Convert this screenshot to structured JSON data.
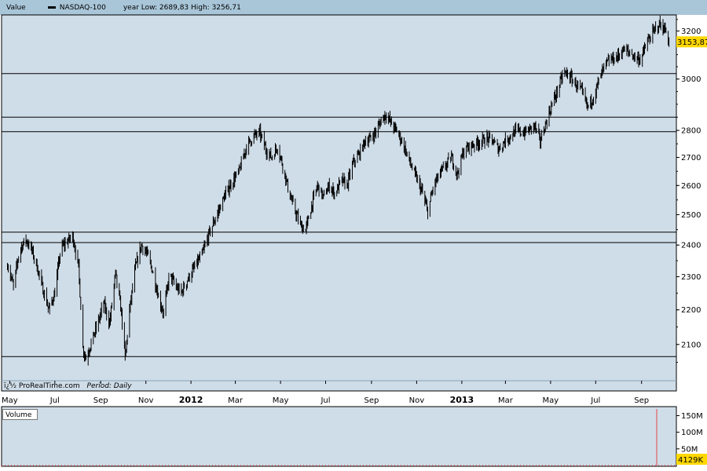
{
  "header": {
    "value_label": "Value",
    "series_name": "NASDAQ-100",
    "range_text": "year Low: 2689,83 High: 3256,71"
  },
  "credit": {
    "source": "ï¿½ ProRealTime.com",
    "period": "Period: Daily"
  },
  "volume_panel": {
    "label": "Volume",
    "last_value": "4129K",
    "spike_color": "#e04848"
  },
  "colors": {
    "background": "#cfdde8",
    "frame": "#000000",
    "last_price_badge": "#ffd800",
    "header_bg": "#a9c6d9"
  },
  "chart_data": [
    {
      "type": "line",
      "style": "daily OHLC bars",
      "series": [
        {
          "name": "NASDAQ-100",
          "points": [
            [
              "2011-04-28",
              2340
            ],
            [
              "2011-05-06",
              2270
            ],
            [
              "2011-05-14",
              2380
            ],
            [
              "2011-05-22",
              2420
            ],
            [
              "2011-05-30",
              2390
            ],
            [
              "2011-06-07",
              2330
            ],
            [
              "2011-06-15",
              2260
            ],
            [
              "2011-06-23",
              2200
            ],
            [
              "2011-07-01",
              2250
            ],
            [
              "2011-07-09",
              2390
            ],
            [
              "2011-07-17",
              2410
            ],
            [
              "2011-07-25",
              2430
            ],
            [
              "2011-08-02",
              2330
            ],
            [
              "2011-08-08",
              2090
            ],
            [
              "2011-08-12",
              2060
            ],
            [
              "2011-08-20",
              2110
            ],
            [
              "2011-08-28",
              2160
            ],
            [
              "2011-09-05",
              2220
            ],
            [
              "2011-09-13",
              2160
            ],
            [
              "2011-09-21",
              2310
            ],
            [
              "2011-09-29",
              2190
            ],
            [
              "2011-10-04",
              2060
            ],
            [
              "2011-10-10",
              2200
            ],
            [
              "2011-10-18",
              2330
            ],
            [
              "2011-10-26",
              2400
            ],
            [
              "2011-11-03",
              2370
            ],
            [
              "2011-11-11",
              2310
            ],
            [
              "2011-11-19",
              2230
            ],
            [
              "2011-11-25",
              2190
            ],
            [
              "2011-12-03",
              2310
            ],
            [
              "2011-12-11",
              2270
            ],
            [
              "2011-12-19",
              2250
            ],
            [
              "2011-12-27",
              2290
            ],
            [
              "2012-01-06",
              2330
            ],
            [
              "2012-01-16",
              2370
            ],
            [
              "2012-01-26",
              2440
            ],
            [
              "2012-02-05",
              2500
            ],
            [
              "2012-02-15",
              2560
            ],
            [
              "2012-02-25",
              2610
            ],
            [
              "2012-03-06",
              2650
            ],
            [
              "2012-03-16",
              2740
            ],
            [
              "2012-03-26",
              2780
            ],
            [
              "2012-04-03",
              2790
            ],
            [
              "2012-04-11",
              2730
            ],
            [
              "2012-04-19",
              2700
            ],
            [
              "2012-04-27",
              2740
            ],
            [
              "2012-05-05",
              2660
            ],
            [
              "2012-05-13",
              2570
            ],
            [
              "2012-05-21",
              2510
            ],
            [
              "2012-05-29",
              2460
            ],
            [
              "2012-06-04",
              2450
            ],
            [
              "2012-06-12",
              2530
            ],
            [
              "2012-06-20",
              2600
            ],
            [
              "2012-06-28",
              2560
            ],
            [
              "2012-07-06",
              2600
            ],
            [
              "2012-07-14",
              2570
            ],
            [
              "2012-07-22",
              2620
            ],
            [
              "2012-07-30",
              2600
            ],
            [
              "2012-08-07",
              2680
            ],
            [
              "2012-08-15",
              2710
            ],
            [
              "2012-08-23",
              2760
            ],
            [
              "2012-08-31",
              2770
            ],
            [
              "2012-09-08",
              2800
            ],
            [
              "2012-09-16",
              2850
            ],
            [
              "2012-09-21",
              2860
            ],
            [
              "2012-09-29",
              2820
            ],
            [
              "2012-10-07",
              2790
            ],
            [
              "2012-10-15",
              2740
            ],
            [
              "2012-10-23",
              2680
            ],
            [
              "2012-10-31",
              2630
            ],
            [
              "2012-11-08",
              2580
            ],
            [
              "2012-11-16",
              2510
            ],
            [
              "2012-11-24",
              2600
            ],
            [
              "2012-12-02",
              2640
            ],
            [
              "2012-12-10",
              2670
            ],
            [
              "2012-12-18",
              2700
            ],
            [
              "2012-12-26",
              2640
            ],
            [
              "2013-01-03",
              2720
            ],
            [
              "2013-01-11",
              2740
            ],
            [
              "2013-01-19",
              2750
            ],
            [
              "2013-01-27",
              2760
            ],
            [
              "2013-02-04",
              2770
            ],
            [
              "2013-02-12",
              2760
            ],
            [
              "2013-02-20",
              2730
            ],
            [
              "2013-02-28",
              2760
            ],
            [
              "2013-03-08",
              2780
            ],
            [
              "2013-03-16",
              2800
            ],
            [
              "2013-03-24",
              2790
            ],
            [
              "2013-04-01",
              2800
            ],
            [
              "2013-04-09",
              2820
            ],
            [
              "2013-04-17",
              2760
            ],
            [
              "2013-04-25",
              2830
            ],
            [
              "2013-05-03",
              2900
            ],
            [
              "2013-05-11",
              2960
            ],
            [
              "2013-05-19",
              3030
            ],
            [
              "2013-05-27",
              3010
            ],
            [
              "2013-06-04",
              2980
            ],
            [
              "2013-06-12",
              2950
            ],
            [
              "2013-06-20",
              2890
            ],
            [
              "2013-06-28",
              2930
            ],
            [
              "2013-07-06",
              3000
            ],
            [
              "2013-07-14",
              3060
            ],
            [
              "2013-07-22",
              3080
            ],
            [
              "2013-07-30",
              3090
            ],
            [
              "2013-08-07",
              3120
            ],
            [
              "2013-08-15",
              3110
            ],
            [
              "2013-08-23",
              3090
            ],
            [
              "2013-08-31",
              3080
            ],
            [
              "2013-09-08",
              3150
            ],
            [
              "2013-09-16",
              3190
            ],
            [
              "2013-09-24",
              3230
            ],
            [
              "2013-10-02",
              3210
            ],
            [
              "2013-10-08",
              3153.87
            ]
          ]
        }
      ],
      "x_ticks": [
        "May",
        "Jul",
        "Sep",
        "Nov",
        "2012",
        "Mar",
        "May",
        "Jul",
        "Sep",
        "Nov",
        "2013",
        "Mar",
        "May",
        "Jul",
        "Sep"
      ],
      "x_tick_dates": [
        "2011-05-01",
        "2011-07-01",
        "2011-09-01",
        "2011-11-01",
        "2012-01-01",
        "2012-03-01",
        "2012-05-01",
        "2012-07-01",
        "2012-09-01",
        "2012-11-01",
        "2013-01-01",
        "2013-03-01",
        "2013-05-01",
        "2013-07-01",
        "2013-09-01"
      ],
      "y_ticks": [
        2100,
        2200,
        2300,
        2400,
        2500,
        2600,
        2700,
        2800,
        3000,
        3200
      ],
      "y_tick_labels": [
        "2100",
        "2200",
        "2300",
        "2400",
        "2500",
        "2600",
        "2700",
        "2800",
        "3000",
        "3200"
      ],
      "ylim": [
        2000,
        3270
      ],
      "y_scale": "log",
      "horizontal_levels": [
        2066,
        2408,
        2442,
        2795,
        2850,
        3022
      ],
      "last_value": 3153.87,
      "last_value_label": "3153,87",
      "grid": false,
      "legend": "top-left"
    },
    {
      "type": "bar",
      "title": "Volume",
      "y_ticks": [
        50,
        100,
        150
      ],
      "y_tick_labels": [
        "50M",
        "100M",
        "150M"
      ],
      "ylim": [
        0,
        170
      ],
      "last_value_label": "4129K"
    }
  ]
}
